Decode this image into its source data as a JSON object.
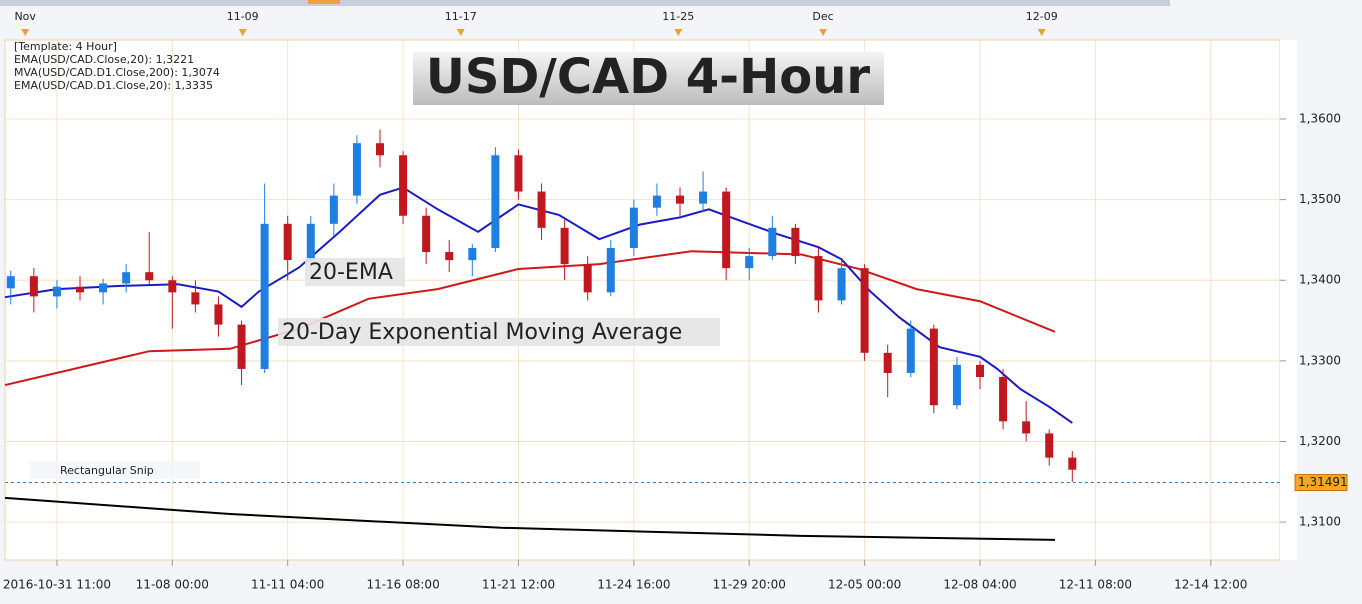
{
  "chart_data": {
    "type": "candlestick",
    "title": "USD/CAD 4-Hour",
    "legend": [
      {
        "text": "[Template: 4 Hour]",
        "color": "#1a237e"
      },
      {
        "text": "EMA(USD/CAD.Close,20): 1,3221",
        "color": "#1a1ac8"
      },
      {
        "text": "MVA(USD/CAD.D1.Close,200): 1,3074",
        "color": "#000000"
      },
      {
        "text": "EMA(USD/CAD.D1.Close,20): 1,3335",
        "color": "#d01818"
      }
    ],
    "annotations": [
      {
        "text": "20-EMA",
        "color": "#1a1ab0"
      },
      {
        "text": "20-Day Exponential Moving Average",
        "color": "#d01818"
      },
      {
        "text": "Rectangular Snip",
        "color": "#b8c4d8"
      }
    ],
    "up_color": "#1e7fe0",
    "down_color": "#c0181e",
    "x": [
      -8,
      -4,
      0,
      4,
      8,
      12,
      16,
      20,
      24,
      28,
      32,
      36,
      40,
      44,
      48,
      52,
      56,
      60,
      64,
      68,
      72,
      76,
      80,
      84,
      88,
      92,
      96,
      100,
      104,
      108,
      112,
      116,
      120,
      124,
      128,
      132,
      136,
      140,
      144,
      148,
      152,
      156,
      160,
      164,
      168,
      172,
      176
    ],
    "open": [
      1.339,
      1.3405,
      1.338,
      1.3392,
      1.3385,
      1.3396,
      1.341,
      1.34,
      1.3385,
      1.337,
      1.3345,
      1.329,
      1.347,
      1.3425,
      1.347,
      1.3505,
      1.357,
      1.3555,
      1.348,
      1.3435,
      1.3425,
      1.344,
      1.3555,
      1.351,
      1.3465,
      1.342,
      1.3385,
      1.344,
      1.349,
      1.3505,
      1.3495,
      1.351,
      1.3415,
      1.343,
      1.3465,
      1.343,
      1.3375,
      1.3415,
      1.331,
      1.3285,
      1.334,
      1.3245,
      1.3295,
      1.328,
      1.3225,
      1.321,
      1.318
    ],
    "high": [
      1.3412,
      1.3415,
      1.34,
      1.3405,
      1.3402,
      1.342,
      1.346,
      1.3405,
      1.34,
      1.338,
      1.335,
      1.352,
      1.348,
      1.348,
      1.352,
      1.358,
      1.3587,
      1.356,
      1.349,
      1.345,
      1.3445,
      1.3565,
      1.3562,
      1.352,
      1.3475,
      1.343,
      1.345,
      1.35,
      1.352,
      1.3515,
      1.3535,
      1.3515,
      1.344,
      1.348,
      1.347,
      1.344,
      1.3425,
      1.342,
      1.332,
      1.335,
      1.3345,
      1.3305,
      1.33,
      1.329,
      1.325,
      1.3215,
      1.3188
    ],
    "low": [
      1.337,
      1.336,
      1.3365,
      1.3375,
      1.337,
      1.3385,
      1.3395,
      1.334,
      1.336,
      1.333,
      1.327,
      1.3285,
      1.34,
      1.3415,
      1.3455,
      1.3495,
      1.354,
      1.347,
      1.342,
      1.341,
      1.3405,
      1.3435,
      1.35,
      1.345,
      1.34,
      1.3375,
      1.338,
      1.343,
      1.348,
      1.348,
      1.3485,
      1.34,
      1.34,
      1.3425,
      1.342,
      1.336,
      1.337,
      1.33,
      1.3255,
      1.328,
      1.3235,
      1.324,
      1.3265,
      1.3215,
      1.32,
      1.317,
      1.315
    ],
    "close": [
      1.3405,
      1.338,
      1.3392,
      1.3385,
      1.3396,
      1.341,
      1.34,
      1.3385,
      1.337,
      1.3345,
      1.329,
      1.347,
      1.3425,
      1.347,
      1.3505,
      1.357,
      1.3555,
      1.348,
      1.3435,
      1.3425,
      1.344,
      1.3555,
      1.351,
      1.3465,
      1.342,
      1.3385,
      1.344,
      1.349,
      1.3505,
      1.3495,
      1.351,
      1.3415,
      1.343,
      1.3465,
      1.343,
      1.3375,
      1.3415,
      1.331,
      1.3285,
      1.334,
      1.3245,
      1.3295,
      1.328,
      1.3225,
      1.321,
      1.318,
      1.3165
    ],
    "lines": [
      {
        "color": "#000000",
        "x": [
          -9,
          30,
          77,
          129,
          173
        ],
        "values": [
          1.313,
          1.311,
          1.3093,
          1.3083,
          1.3078
        ]
      },
      {
        "color": "#d01818",
        "x": [
          -9,
          16,
          30,
          42,
          54,
          66,
          80,
          94,
          110,
          129,
          139,
          149,
          160,
          173
        ],
        "values": [
          1.327,
          1.3312,
          1.3315,
          1.334,
          1.3377,
          1.3389,
          1.3414,
          1.342,
          1.3436,
          1.3432,
          1.3414,
          1.3389,
          1.3374,
          1.3336
        ]
      },
      {
        "color": "#1a1ac8",
        "x": [
          -9,
          0,
          11,
          21,
          28,
          32,
          35,
          42,
          49,
          56,
          60,
          66,
          73,
          80,
          87,
          94,
          101,
          108,
          113,
          118,
          125,
          132,
          136,
          141,
          146,
          153,
          160,
          163,
          167,
          172,
          176
        ],
        "values": [
          1.3379,
          1.3389,
          1.3393,
          1.3395,
          1.3386,
          1.3367,
          1.3386,
          1.3416,
          1.346,
          1.3506,
          1.3515,
          1.3488,
          1.346,
          1.3494,
          1.3481,
          1.3451,
          1.3469,
          1.3478,
          1.3488,
          1.3475,
          1.3457,
          1.3441,
          1.3426,
          1.3386,
          1.3354,
          1.3317,
          1.3305,
          1.329,
          1.3265,
          1.3243,
          1.3223
        ]
      }
    ],
    "xlim": [
      -9,
      212
    ],
    "ylim": [
      1.3053,
      1.3698
    ],
    "xticks": [
      {
        "value": 0,
        "label": "2016-10-31 11:00"
      },
      {
        "value": 20,
        "label": "11-08 00:00"
      },
      {
        "value": 40,
        "label": "11-11 04:00"
      },
      {
        "value": 60,
        "label": "11-16 08:00"
      },
      {
        "value": 80,
        "label": "11-21 12:00"
      },
      {
        "value": 100,
        "label": "11-24 16:00"
      },
      {
        "value": 120,
        "label": "11-29 20:00"
      },
      {
        "value": 140,
        "label": "12-05 00:00"
      },
      {
        "value": 160,
        "label": "12-08 04:00"
      },
      {
        "value": 180,
        "label": "12-11 08:00"
      },
      {
        "value": 200,
        "label": "12-14 12:00"
      }
    ],
    "top_ticks": [
      {
        "value": -5.5,
        "label": "Nov"
      },
      {
        "value": 32.2,
        "label": "11-09"
      },
      {
        "value": 70,
        "label": "11-17"
      },
      {
        "value": 107.7,
        "label": "11-25"
      },
      {
        "value": 132.8,
        "label": "Dec"
      },
      {
        "value": 170.7,
        "label": "12-09"
      }
    ],
    "yticks": [
      {
        "value": 1.31,
        "label": "1,3100"
      },
      {
        "value": 1.32,
        "label": "1,3200"
      },
      {
        "value": 1.33,
        "label": "1,3300"
      },
      {
        "value": 1.34,
        "label": "1,3400"
      },
      {
        "value": 1.35,
        "label": "1,3500"
      },
      {
        "value": 1.36,
        "label": "1,3600"
      }
    ],
    "last_price": {
      "value": 1.31491,
      "label": "1,31491"
    },
    "grid": true
  }
}
